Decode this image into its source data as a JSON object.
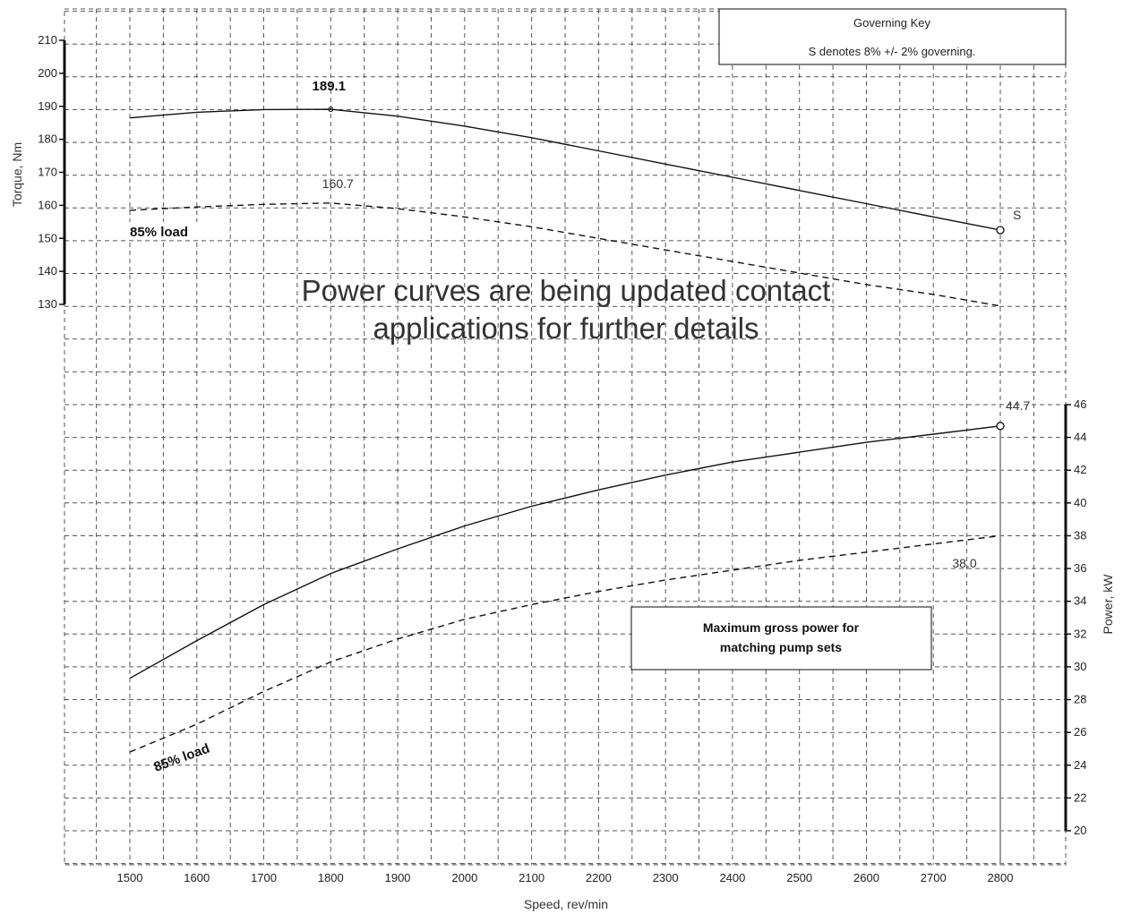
{
  "chart_data": {
    "type": "line",
    "xlabel": "Speed, rev/min",
    "x_ticks": [
      1500,
      1600,
      1700,
      1800,
      1900,
      2000,
      2100,
      2200,
      2300,
      2400,
      2500,
      2600,
      2700,
      2800
    ],
    "xlim": [
      1500,
      2800
    ],
    "torque_axis": {
      "label": "Torque, Nm",
      "ylim": [
        130,
        210
      ],
      "ticks": [
        130,
        140,
        150,
        160,
        170,
        180,
        190,
        200,
        210
      ]
    },
    "power_axis": {
      "label": "Power, kW",
      "ylim": [
        20,
        46
      ],
      "ticks": [
        20,
        22,
        24,
        26,
        28,
        30,
        32,
        34,
        36,
        38,
        40,
        42,
        44,
        46
      ]
    },
    "series": [
      {
        "axis": "torque",
        "style": "solid",
        "x": [
          1500,
          1600,
          1700,
          1800,
          1900,
          2000,
          2100,
          2200,
          2300,
          2400,
          2500,
          2600,
          2700,
          2800
        ],
        "values": [
          186.5,
          188.2,
          189.0,
          189.1,
          187.0,
          184.0,
          180.5,
          176.5,
          172.5,
          168.5,
          164.5,
          160.5,
          156.5,
          152.5
        ]
      },
      {
        "axis": "torque",
        "style": "dashed",
        "name": "85% load",
        "x": [
          1500,
          1600,
          1700,
          1800,
          1900,
          2000,
          2100,
          2200,
          2300,
          2400,
          2500,
          2600,
          2700,
          2800
        ],
        "values": [
          158.5,
          159.5,
          160.3,
          160.7,
          159.0,
          156.5,
          153.5,
          150.0,
          146.5,
          143.0,
          139.5,
          136.0,
          133.0,
          129.5
        ]
      },
      {
        "axis": "power",
        "style": "solid",
        "x": [
          1500,
          1600,
          1700,
          1800,
          1900,
          2000,
          2100,
          2200,
          2300,
          2400,
          2500,
          2600,
          2700,
          2800
        ],
        "values": [
          29.3,
          31.6,
          33.8,
          35.7,
          37.2,
          38.6,
          39.8,
          40.8,
          41.7,
          42.5,
          43.1,
          43.7,
          44.2,
          44.7
        ]
      },
      {
        "axis": "power",
        "style": "dashed",
        "name": "85% load",
        "x": [
          1500,
          1600,
          1700,
          1800,
          1900,
          2000,
          2100,
          2200,
          2300,
          2400,
          2500,
          2600,
          2700,
          2800
        ],
        "values": [
          24.8,
          26.5,
          28.5,
          30.3,
          31.7,
          32.9,
          33.8,
          34.6,
          35.3,
          35.9,
          36.5,
          37.0,
          37.5,
          38.0
        ]
      }
    ],
    "annotations": {
      "torque_peak": {
        "text": "189.1",
        "x": 1800,
        "value": 189.1
      },
      "torque_85_peak": {
        "text": "160.7",
        "x": 1800,
        "value": 160.7
      },
      "torque_end_label": {
        "text": "S",
        "x": 2800,
        "value": 152.5
      },
      "power_end": {
        "text": "44.7",
        "x": 2800,
        "value": 44.7
      },
      "power_85_end": {
        "text": "38.0",
        "x": 2800,
        "value": 38.0
      },
      "torque_85_label": "85% load",
      "power_85_label": "85% load"
    },
    "governing_key": {
      "title": "Governing Key",
      "line": "S denotes 8% +/- 2% governing."
    },
    "power_note": {
      "line1": "Maximum gross power for",
      "line2": "matching pump sets"
    },
    "watermark": {
      "line1": "Power curves are being updated contact",
      "line2": "applications for further details"
    },
    "grid": true
  }
}
